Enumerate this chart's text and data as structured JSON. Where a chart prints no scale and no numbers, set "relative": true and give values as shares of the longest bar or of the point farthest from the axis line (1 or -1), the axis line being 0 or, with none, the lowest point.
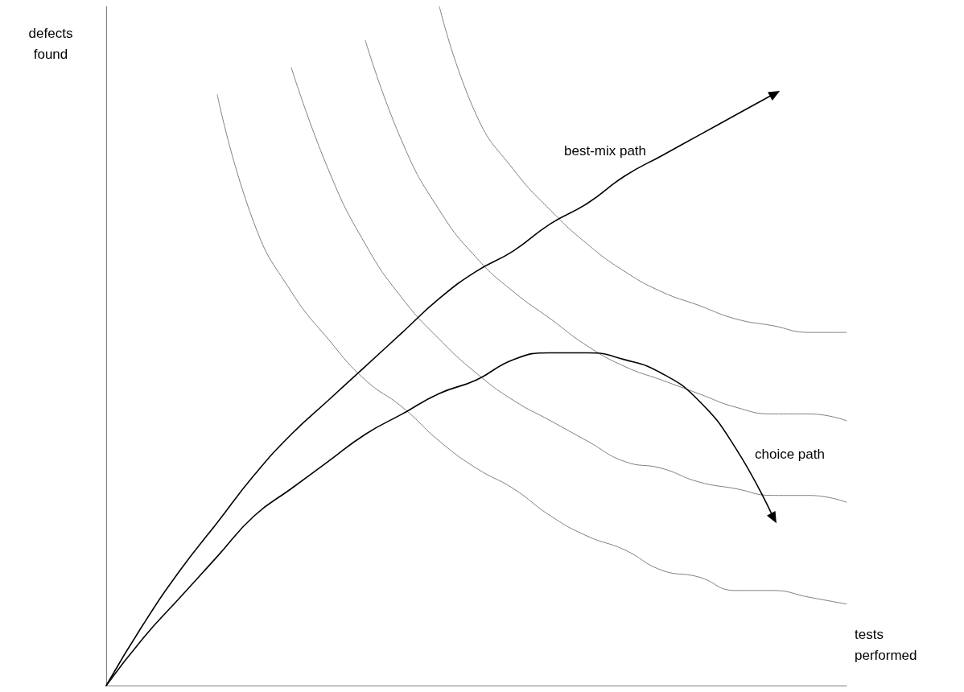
{
  "chart_data": {
    "type": "line",
    "relative": true,
    "xlabel": "tests performed",
    "ylabel": "defects found",
    "categories": [
      null,
      null,
      null,
      null,
      null,
      null,
      null,
      null,
      null,
      null,
      null,
      null,
      null,
      null,
      null,
      null,
      null,
      null,
      null,
      null,
      null
    ],
    "series": [
      {
        "color": "#808080",
        "values": [
          null,
          null,
          null,
          0.87,
          0.68,
          0.58,
          0.51,
          0.45,
          0.41,
          0.36,
          0.32,
          0.29,
          0.25,
          0.22,
          0.2,
          0.17,
          0.16,
          0.14,
          0.14,
          0.13,
          0.12
        ]
      },
      {
        "color": "#808080",
        "values": [
          null,
          null,
          null,
          null,
          null,
          0.91,
          0.76,
          0.65,
          0.57,
          0.51,
          0.46,
          0.42,
          0.39,
          0.36,
          0.33,
          0.32,
          0.3,
          0.29,
          0.28,
          0.28,
          0.27
        ]
      },
      {
        "color": "#808080",
        "values": [
          null,
          null,
          null,
          null,
          null,
          null,
          null,
          0.95,
          0.8,
          0.7,
          0.63,
          0.58,
          0.54,
          0.5,
          0.47,
          0.45,
          0.43,
          0.41,
          0.4,
          0.4,
          0.39
        ]
      },
      {
        "color": "#808080",
        "values": [
          null,
          null,
          null,
          null,
          null,
          null,
          null,
          null,
          null,
          1.0,
          0.84,
          0.76,
          0.7,
          0.65,
          0.61,
          0.58,
          0.56,
          0.54,
          0.53,
          0.52,
          0.52
        ]
      },
      {
        "name": "best-mix path",
        "color": "#000000",
        "values": [
          0,
          0.09,
          0.17,
          0.24,
          0.31,
          0.37,
          0.42,
          0.47,
          0.52,
          0.57,
          0.61,
          0.64,
          0.68,
          0.71,
          0.75,
          0.78,
          0.81,
          0.84,
          0.87,
          null,
          null
        ]
      },
      {
        "name": "choice path",
        "color": "#000000",
        "values": [
          0,
          0.07,
          0.13,
          0.19,
          0.25,
          0.29,
          0.33,
          0.37,
          0.4,
          0.43,
          0.45,
          0.48,
          0.49,
          0.49,
          0.48,
          0.46,
          0.42,
          0.35,
          0.25,
          null,
          null
        ]
      }
    ],
    "grid": false,
    "legend": false,
    "marker": "none",
    "line_style": "solid"
  }
}
